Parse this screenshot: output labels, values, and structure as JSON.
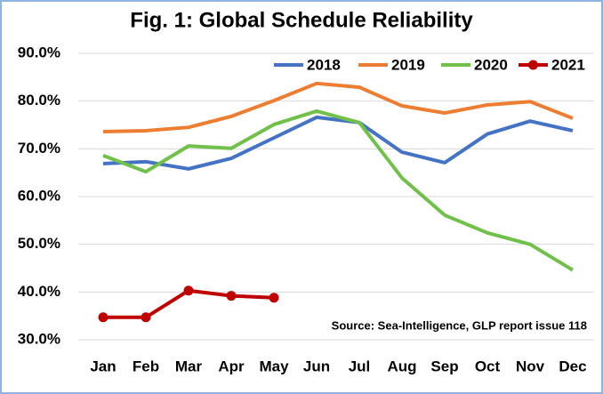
{
  "chart_data": {
    "type": "line",
    "title": "Fig. 1: Global Schedule Reliability",
    "categories": [
      "Jan",
      "Feb",
      "Mar",
      "Apr",
      "May",
      "Jun",
      "Jul",
      "Aug",
      "Sep",
      "Oct",
      "Nov",
      "Dec"
    ],
    "series": [
      {
        "name": "2018",
        "color": "#4472c4",
        "values": [
          66.9,
          67.3,
          65.8,
          68.0,
          72.3,
          76.6,
          75.5,
          69.3,
          67.1,
          73.1,
          75.8,
          73.8
        ]
      },
      {
        "name": "2019",
        "color": "#ed7d31",
        "values": [
          73.6,
          73.8,
          74.5,
          76.8,
          80.1,
          83.7,
          82.9,
          79.0,
          77.5,
          79.2,
          79.9,
          76.4
        ]
      },
      {
        "name": "2020",
        "color": "#70c04a",
        "values": [
          68.6,
          65.2,
          70.6,
          70.1,
          75.1,
          77.9,
          75.5,
          63.9,
          56.1,
          52.4,
          50.0,
          44.6
        ]
      },
      {
        "name": "2021",
        "color": "#c00000",
        "values": [
          34.7,
          34.7,
          40.3,
          39.2,
          38.8,
          null,
          null,
          null,
          null,
          null,
          null,
          null
        ]
      }
    ],
    "ylim": [
      30,
      90
    ],
    "yticks": [
      {
        "value": 30,
        "label": "30.0%"
      },
      {
        "value": 40,
        "label": "40.0%"
      },
      {
        "value": 50,
        "label": "50.0%"
      },
      {
        "value": 60,
        "label": "60.0%"
      },
      {
        "value": 70,
        "label": "70.0%"
      },
      {
        "value": 80,
        "label": "80.0%"
      },
      {
        "value": 90,
        "label": "90.0%"
      }
    ],
    "grid": true,
    "legend": "top-right",
    "annotation": "Source: Sea-Intelligence, GLP report issue 118"
  }
}
